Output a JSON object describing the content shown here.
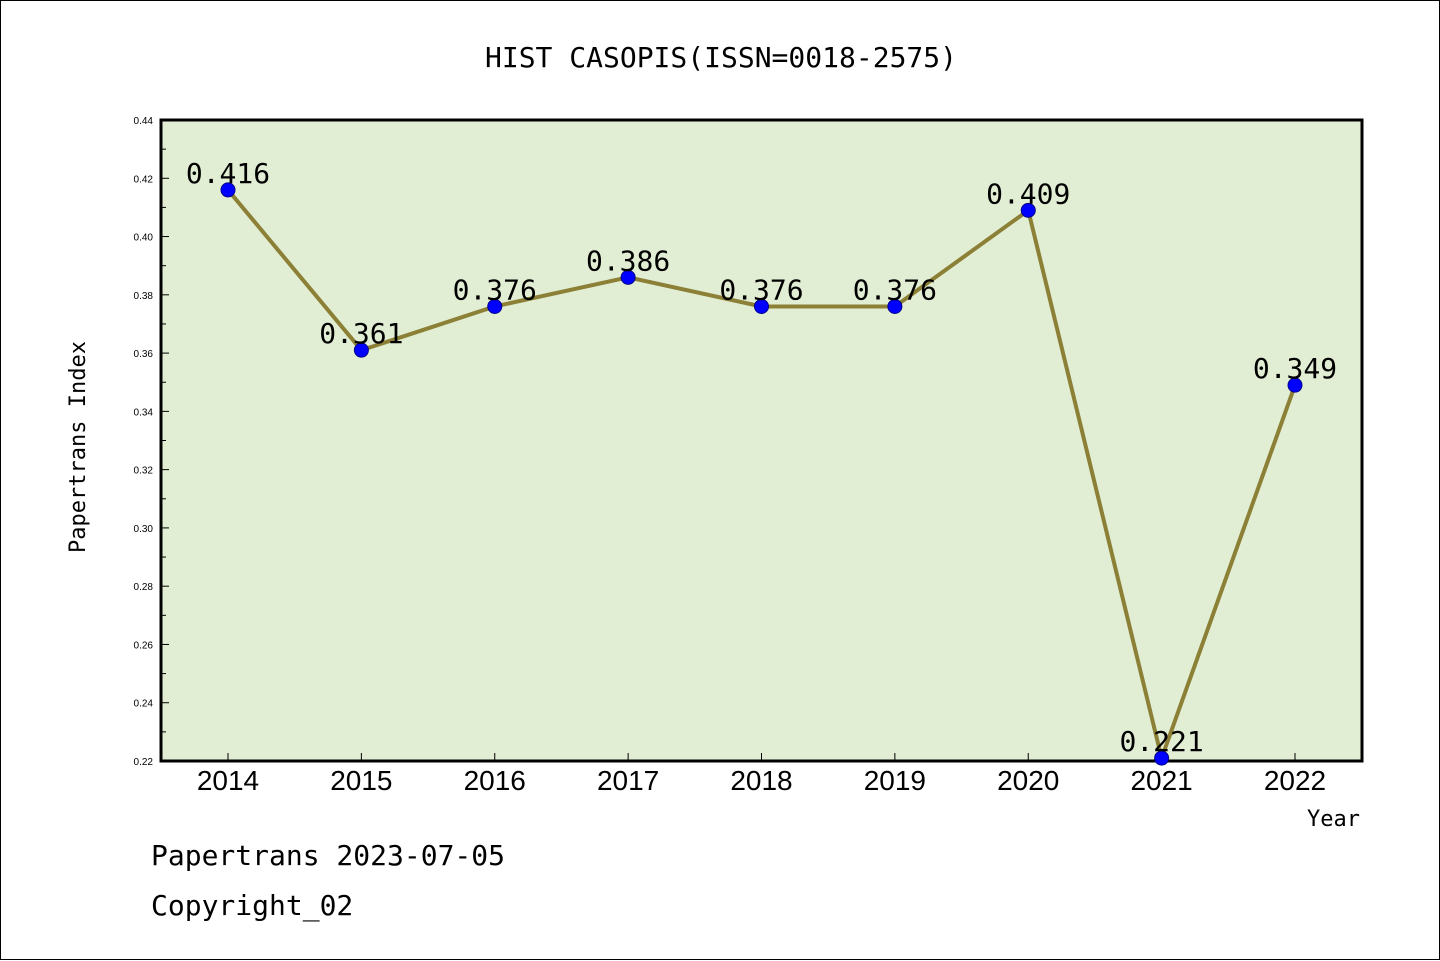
{
  "chart_data": {
    "type": "line",
    "title": "HIST CASOPIS(ISSN=0018-2575)",
    "xlabel": "Year",
    "ylabel": "Papertrans Index",
    "categories": [
      "2014",
      "2015",
      "2016",
      "2017",
      "2018",
      "2019",
      "2020",
      "2021",
      "2022"
    ],
    "series": [
      {
        "values": [
          0.416,
          0.361,
          0.376,
          0.386,
          0.376,
          0.376,
          0.409,
          0.221,
          0.349
        ],
        "labels": [
          "0.416",
          "0.361",
          "0.376",
          "0.386",
          "0.376",
          "0.376",
          "0.409",
          "0.221",
          "0.349"
        ]
      }
    ],
    "ylim": [
      0.22,
      0.44
    ],
    "yticks": [
      "0.22",
      "0.24",
      "0.26",
      "0.28",
      "0.30",
      "0.32",
      "0.34",
      "0.36",
      "0.38",
      "0.40",
      "0.42",
      "0.44"
    ],
    "grid": false,
    "legend": "none",
    "colors": {
      "plot_background": "#e2eed4",
      "line": "#8b8036",
      "marker": "#0000ff"
    }
  },
  "footer": {
    "line1": "Papertrans 2023-07-05",
    "line2": "Copyright_02"
  }
}
